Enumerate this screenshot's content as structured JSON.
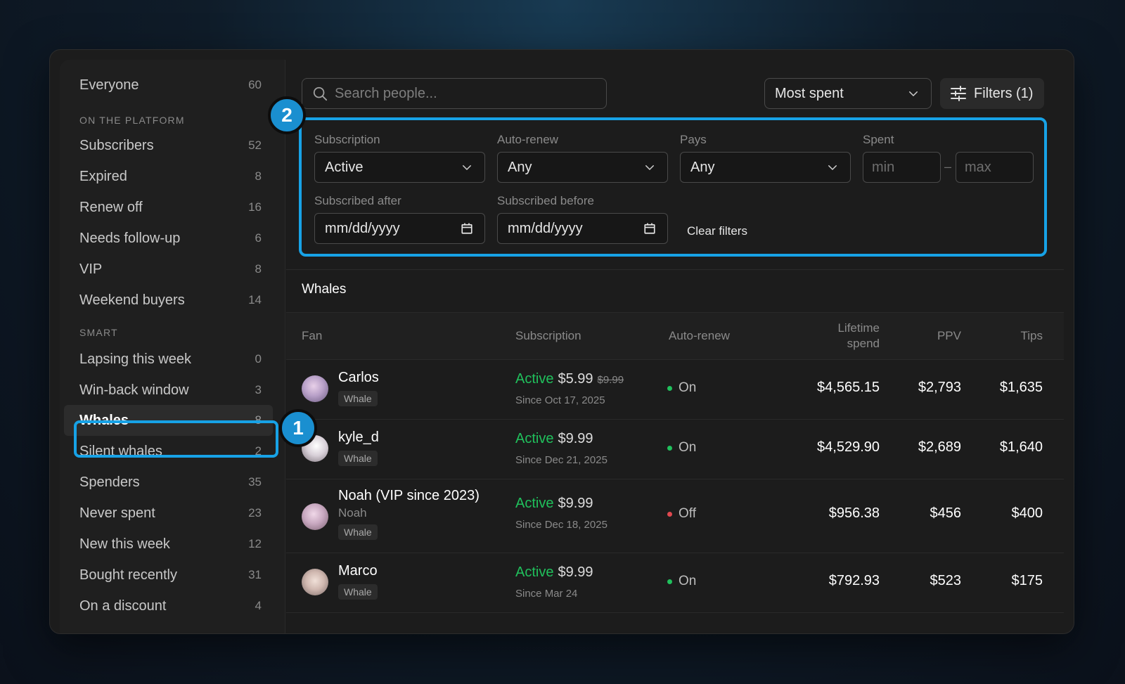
{
  "sidebar": {
    "top_item": {
      "label": "Everyone",
      "count": "60"
    },
    "sections": [
      {
        "title": "ON THE PLATFORM"
      },
      {
        "title": "SMART"
      }
    ],
    "platform_items": [
      {
        "label": "Subscribers",
        "count": "52"
      },
      {
        "label": "Expired",
        "count": "8"
      },
      {
        "label": "Renew off",
        "count": "16"
      },
      {
        "label": "Needs follow-up",
        "count": "6"
      },
      {
        "label": "VIP",
        "count": "8"
      },
      {
        "label": "Weekend buyers",
        "count": "14"
      }
    ],
    "smart_items": [
      {
        "label": "Lapsing this week",
        "count": "0"
      },
      {
        "label": "Win-back window",
        "count": "3"
      },
      {
        "label": "Whales",
        "count": "8",
        "active": true
      },
      {
        "label": "Silent whales",
        "count": "2"
      },
      {
        "label": "Spenders",
        "count": "35"
      },
      {
        "label": "Never spent",
        "count": "23"
      },
      {
        "label": "New this week",
        "count": "12"
      },
      {
        "label": "Bought recently",
        "count": "31"
      },
      {
        "label": "On a discount",
        "count": "4"
      }
    ]
  },
  "annotations": {
    "badge_1": "1",
    "badge_2": "2"
  },
  "toolbar": {
    "search_placeholder": "Search people...",
    "sort_value": "Most spent",
    "filters_label": "Filters (1)"
  },
  "filters": {
    "subscription": {
      "label": "Subscription",
      "value": "Active"
    },
    "auto_renew": {
      "label": "Auto-renew",
      "value": "Any"
    },
    "pays": {
      "label": "Pays",
      "value": "Any"
    },
    "spent": {
      "label": "Spent",
      "min_placeholder": "min",
      "max_placeholder": "max",
      "separator": "–"
    },
    "subscribed_after": {
      "label": "Subscribed after",
      "placeholder": "mm/dd/yyyy"
    },
    "subscribed_before": {
      "label": "Subscribed before",
      "placeholder": "mm/dd/yyyy"
    },
    "clear_label": "Clear filters"
  },
  "list": {
    "title": "Whales",
    "columns": {
      "fan": "Fan",
      "subscription": "Subscription",
      "auto_renew": "Auto-renew",
      "lifetime_line1": "Lifetime",
      "lifetime_line2": "spend",
      "ppv": "PPV",
      "tips": "Tips"
    },
    "rows": [
      {
        "name": "Carlos",
        "tag": "Whale",
        "status": "Active",
        "price": "$5.99",
        "old_price": "$9.99",
        "since": "Since Oct 17, 2025",
        "renew": "On",
        "lifetime": "$4,565.15",
        "ppv": "$2,793",
        "tips": "$1,635"
      },
      {
        "name": "kyle_d",
        "tag": "Whale",
        "status": "Active",
        "price": "$9.99",
        "since": "Since Dec 21, 2025",
        "renew": "On",
        "lifetime": "$4,529.90",
        "ppv": "$2,689",
        "tips": "$1,640"
      },
      {
        "name": "Noah (VIP since 2023)",
        "subname": "Noah",
        "tag": "Whale",
        "status": "Active",
        "price": "$9.99",
        "since": "Since Dec 18, 2025",
        "renew": "Off",
        "lifetime": "$956.38",
        "ppv": "$456",
        "tips": "$400"
      },
      {
        "name": "Marco",
        "tag": "Whale",
        "status": "Active",
        "price": "$9.99",
        "since": "Since Mar 24",
        "renew": "On",
        "lifetime": "$792.93",
        "ppv": "$523",
        "tips": "$175"
      }
    ]
  },
  "colors": {
    "accent": "#17a2e6",
    "active_green": "#20c05c",
    "renew_on": "#20c05c",
    "renew_off": "#e0484f"
  }
}
